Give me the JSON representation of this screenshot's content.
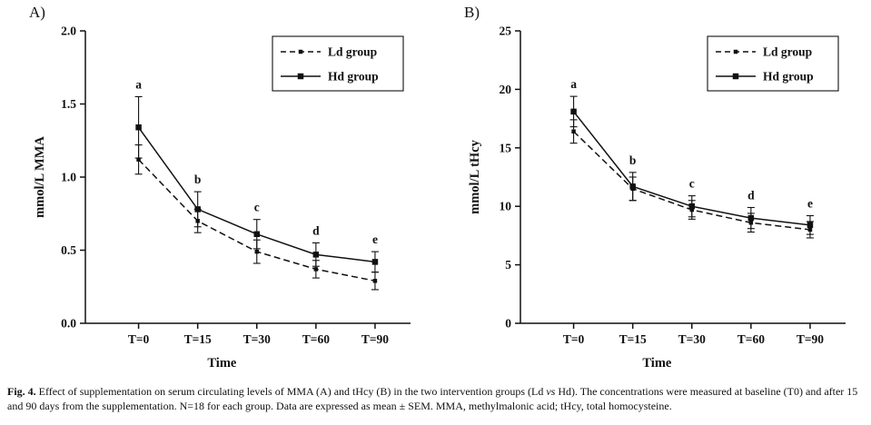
{
  "panels": [
    {
      "label": "A)"
    },
    {
      "label": "B)"
    }
  ],
  "caption": {
    "label": "Fig. 4.",
    "parts": [
      {
        "text": " Effect of supplementation on serum circulating levels of MMA (A) and tHcy (B) in the two intervention groups (Ld ",
        "style": "normal"
      },
      {
        "text": "vs",
        "style": "italic"
      },
      {
        "text": " Hd). The concentrations were measured at baseline (T0) and after 15 and 90 days from the supplementation. N=18 for each group. Data are expressed as mean ± SEM. MMA, methylmalonic acid; tHcy, total homocysteine.",
        "style": "normal"
      }
    ]
  },
  "line_color": "#111111",
  "chart_data": [
    {
      "type": "line",
      "panel": "A",
      "title": "",
      "categories": [
        "T=0",
        "T=15",
        "T=30",
        "T=60",
        "T=90"
      ],
      "series": [
        {
          "name": "Ld group",
          "style": "dashed",
          "values": [
            1.12,
            0.7,
            0.49,
            0.37,
            0.29
          ],
          "errors": [
            0.1,
            0.08,
            0.08,
            0.06,
            0.06
          ]
        },
        {
          "name": "Hd group",
          "style": "solid",
          "values": [
            1.34,
            0.78,
            0.61,
            0.47,
            0.42
          ],
          "errors": [
            0.21,
            0.12,
            0.1,
            0.08,
            0.07
          ]
        }
      ],
      "annotations": [
        "a",
        "b",
        "c",
        "d",
        "e"
      ],
      "xlabel": "Time",
      "ylabel": "mmol/L MMA",
      "ylim": [
        0,
        2.0
      ],
      "yticks": [
        0,
        0.5,
        1.0,
        1.5,
        2.0
      ],
      "ytick_labels": [
        "0.0",
        "0.5",
        "1.0",
        "1.5",
        "2.0"
      ],
      "grid": false,
      "legend_position": "top-right"
    },
    {
      "type": "line",
      "panel": "B",
      "title": "",
      "categories": [
        "T=0",
        "T=15",
        "T=30",
        "T=60",
        "T=90"
      ],
      "series": [
        {
          "name": "Ld group",
          "style": "dashed",
          "values": [
            16.4,
            11.5,
            9.7,
            8.6,
            8.0
          ],
          "errors": [
            1.0,
            1.0,
            0.8,
            0.8,
            0.7
          ]
        },
        {
          "name": "Hd group",
          "style": "solid",
          "values": [
            18.1,
            11.7,
            10.0,
            9.0,
            8.4
          ],
          "errors": [
            1.3,
            1.2,
            0.9,
            0.9,
            0.8
          ]
        }
      ],
      "annotations": [
        "a",
        "b",
        "c",
        "d",
        "e"
      ],
      "xlabel": "Time",
      "ylabel": "mmol/L tHcy",
      "ylim": [
        0,
        25
      ],
      "yticks": [
        0,
        5,
        10,
        15,
        20,
        25
      ],
      "ytick_labels": [
        "0",
        "5",
        "10",
        "15",
        "20",
        "25"
      ],
      "grid": false,
      "legend_position": "top-right"
    }
  ]
}
